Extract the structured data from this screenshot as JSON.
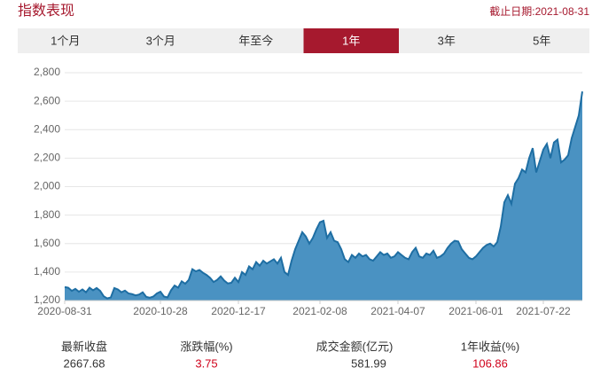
{
  "header": {
    "title": "指数表现",
    "date_label": "截止日期:2021-08-31"
  },
  "tabs": [
    {
      "label": "1个月"
    },
    {
      "label": "3个月"
    },
    {
      "label": "年至今"
    },
    {
      "label": "1年",
      "active": true
    },
    {
      "label": "3年"
    },
    {
      "label": "5年"
    }
  ],
  "chart_data": {
    "type": "area",
    "color": "#4a92c2",
    "line_color": "#1e6ea3",
    "grid": true,
    "ylim": [
      1200,
      2800
    ],
    "yticks": [
      {
        "value": 1200,
        "label": "1,200"
      },
      {
        "value": 1400,
        "label": "1,400"
      },
      {
        "value": 1600,
        "label": "1,600"
      },
      {
        "value": 1800,
        "label": "1,800"
      },
      {
        "value": 2000,
        "label": "2,000"
      },
      {
        "value": 2200,
        "label": "2,200"
      },
      {
        "value": 2400,
        "label": "2,400"
      },
      {
        "value": 2600,
        "label": "2,600"
      },
      {
        "value": 2800,
        "label": "2,800"
      }
    ],
    "categories": [
      "2020-08-31",
      null,
      null,
      null,
      null,
      null,
      null,
      null,
      null,
      null,
      null,
      null,
      null,
      null,
      null,
      null,
      null,
      null,
      null,
      null,
      null,
      null,
      null,
      null,
      null,
      null,
      null,
      "2020-10-28",
      null,
      null,
      null,
      null,
      null,
      null,
      null,
      null,
      null,
      null,
      null,
      null,
      null,
      null,
      null,
      null,
      null,
      null,
      null,
      null,
      null,
      "2020-12-17",
      null,
      null,
      null,
      null,
      null,
      null,
      null,
      null,
      null,
      null,
      null,
      null,
      null,
      null,
      null,
      null,
      null,
      null,
      null,
      null,
      null,
      null,
      "2021-02-08",
      null,
      null,
      null,
      null,
      null,
      null,
      null,
      null,
      null,
      null,
      null,
      null,
      null,
      null,
      null,
      null,
      null,
      null,
      null,
      null,
      null,
      "2021-04-07",
      null,
      null,
      null,
      null,
      null,
      null,
      null,
      null,
      null,
      null,
      null,
      null,
      null,
      null,
      null,
      null,
      null,
      null,
      null,
      null,
      null,
      "2021-06-01",
      null,
      null,
      null,
      null,
      null,
      null,
      null,
      null,
      null,
      null,
      null,
      null,
      null,
      null,
      null,
      null,
      null,
      null,
      "2021-07-22",
      null,
      null,
      null,
      null,
      null,
      null,
      null,
      null,
      null,
      null,
      null
    ],
    "values": [
      1295,
      1290,
      1268,
      1282,
      1262,
      1278,
      1258,
      1290,
      1272,
      1288,
      1268,
      1230,
      1215,
      1222,
      1288,
      1278,
      1258,
      1270,
      1250,
      1245,
      1236,
      1242,
      1258,
      1226,
      1220,
      1228,
      1250,
      1262,
      1228,
      1222,
      1272,
      1305,
      1290,
      1335,
      1318,
      1345,
      1420,
      1405,
      1415,
      1395,
      1380,
      1360,
      1330,
      1345,
      1370,
      1340,
      1320,
      1325,
      1360,
      1330,
      1400,
      1380,
      1440,
      1420,
      1470,
      1445,
      1480,
      1460,
      1475,
      1490,
      1460,
      1500,
      1400,
      1380,
      1480,
      1560,
      1620,
      1680,
      1650,
      1600,
      1640,
      1700,
      1750,
      1760,
      1640,
      1680,
      1620,
      1610,
      1560,
      1490,
      1470,
      1520,
      1500,
      1530,
      1510,
      1520,
      1490,
      1480,
      1510,
      1540,
      1520,
      1530,
      1500,
      1510,
      1540,
      1520,
      1500,
      1490,
      1540,
      1570,
      1510,
      1500,
      1530,
      1520,
      1550,
      1500,
      1510,
      1530,
      1570,
      1600,
      1620,
      1615,
      1560,
      1530,
      1500,
      1490,
      1510,
      1540,
      1570,
      1590,
      1600,
      1580,
      1610,
      1720,
      1890,
      1940,
      1880,
      2020,
      2060,
      2120,
      2100,
      2200,
      2270,
      2100,
      2180,
      2260,
      2300,
      2200,
      2310,
      2330,
      2170,
      2190,
      2220,
      2340,
      2420,
      2500,
      2668
    ]
  },
  "stats": [
    {
      "label": "最新收盘",
      "value": 2667.68,
      "color": "#333333"
    },
    {
      "label": "涨跌幅(%)",
      "value": 3.75,
      "color": "#d0021b"
    },
    {
      "label": "成交金额(亿元)",
      "value": 581.99,
      "color": "#333333"
    },
    {
      "label": "1年收益(%)",
      "value": 106.86,
      "color": "#d0021b"
    }
  ]
}
